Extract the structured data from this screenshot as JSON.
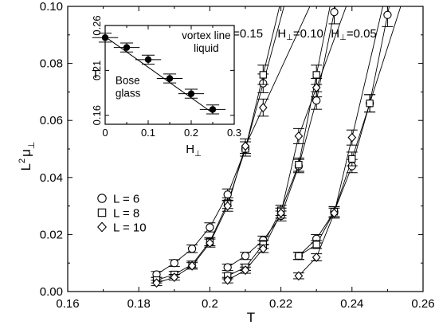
{
  "chart_data": [
    {
      "type": "scatter",
      "xlabel": "T",
      "ylabel_main": "L",
      "ylabel_sup": "2",
      "ylabel_tail": "μ",
      "ylabel_sub": "⊥",
      "xlim": [
        0.16,
        0.26
      ],
      "ylim": [
        0.0,
        0.1
      ],
      "xticks": [
        0.16,
        0.18,
        0.2,
        0.22,
        0.24,
        0.26
      ],
      "xtick_labels": [
        "0.16",
        "0.18",
        "0.2",
        "0.22",
        "0.24",
        "0.26"
      ],
      "yticks": [
        0.0,
        0.02,
        0.04,
        0.06,
        0.08,
        0.1
      ],
      "ytick_labels": [
        "0.00",
        "0.02",
        "0.04",
        "0.06",
        "0.08",
        "0.10"
      ],
      "annotations": [
        {
          "text": "H",
          "sub": "⊥",
          "tail": "=0.15",
          "x": 0.2085,
          "y": 0.0905
        },
        {
          "text": "H",
          "sub": "⊥",
          "tail": "=0.10",
          "x": 0.2255,
          "y": 0.0905
        },
        {
          "text": "H",
          "sub": "⊥",
          "tail": "=0.05",
          "x": 0.2405,
          "y": 0.0905
        }
      ],
      "legend": {
        "position": "left",
        "entries": [
          {
            "marker": "circle",
            "label": "L =  6"
          },
          {
            "marker": "square",
            "label": "L =  8"
          },
          {
            "marker": "diamond",
            "label": "L = 10"
          }
        ]
      },
      "series": [
        {
          "group": "0.15",
          "name": "L =  6",
          "marker": "circle",
          "points": [
            [
              0.185,
              0.006
            ],
            [
              0.19,
              0.01
            ],
            [
              0.195,
              0.015
            ],
            [
              0.2,
              0.0225
            ],
            [
              0.205,
              0.034
            ],
            [
              0.21,
              0.05
            ],
            [
              0.215,
              0.073
            ]
          ]
        },
        {
          "group": "0.15",
          "name": "L =  8",
          "marker": "square",
          "points": [
            [
              0.185,
              0.004
            ],
            [
              0.19,
              0.006
            ],
            [
              0.195,
              0.0095
            ],
            [
              0.2,
              0.0175
            ],
            [
              0.205,
              0.031
            ],
            [
              0.21,
              0.05
            ],
            [
              0.215,
              0.076
            ]
          ]
        },
        {
          "group": "0.15",
          "name": "L = 10",
          "marker": "diamond",
          "points": [
            [
              0.185,
              0.003
            ],
            [
              0.19,
              0.005
            ],
            [
              0.195,
              0.009
            ],
            [
              0.2,
              0.017
            ],
            [
              0.205,
              0.03
            ],
            [
              0.21,
              0.051
            ],
            [
              0.215,
              0.0645
            ]
          ]
        },
        {
          "group": "0.10",
          "name": "L =  6",
          "marker": "circle",
          "points": [
            [
              0.205,
              0.0085
            ],
            [
              0.21,
              0.0125
            ],
            [
              0.215,
              0.018
            ],
            [
              0.22,
              0.0265
            ],
            [
              0.225,
              0.044
            ],
            [
              0.23,
              0.067
            ],
            [
              0.235,
              0.098
            ]
          ]
        },
        {
          "group": "0.10",
          "name": "L =  8",
          "marker": "square",
          "points": [
            [
              0.205,
              0.0055
            ],
            [
              0.21,
              0.0085
            ],
            [
              0.215,
              0.0165
            ],
            [
              0.22,
              0.0285
            ],
            [
              0.225,
              0.0445
            ],
            [
              0.23,
              0.076
            ]
          ]
        },
        {
          "group": "0.10",
          "name": "L = 10",
          "marker": "diamond",
          "points": [
            [
              0.205,
              0.004
            ],
            [
              0.21,
              0.0075
            ],
            [
              0.215,
              0.015
            ],
            [
              0.22,
              0.0275
            ],
            [
              0.225,
              0.0545
            ],
            [
              0.23,
              0.0715
            ]
          ]
        },
        {
          "group": "0.05",
          "name": "L =  6",
          "marker": "circle",
          "points": [
            [
              0.225,
              0.0125
            ],
            [
              0.23,
              0.0185
            ],
            [
              0.235,
              0.028
            ],
            [
              0.24,
              0.044
            ],
            [
              0.245,
              0.066
            ],
            [
              0.25,
              0.097
            ]
          ]
        },
        {
          "group": "0.05",
          "name": "L =  8",
          "marker": "square",
          "points": [
            [
              0.225,
              0.0125
            ],
            [
              0.23,
              0.0165
            ],
            [
              0.235,
              0.028
            ],
            [
              0.24,
              0.0465
            ],
            [
              0.245,
              0.066
            ]
          ]
        },
        {
          "group": "0.05",
          "name": "L = 10",
          "marker": "diamond",
          "points": [
            [
              0.225,
              0.0055
            ],
            [
              0.23,
              0.012
            ],
            [
              0.235,
              0.0275
            ],
            [
              0.24,
              0.054
            ]
          ]
        }
      ]
    },
    {
      "type": "line",
      "inset": true,
      "xlabel": "H",
      "xlabel_sub": "⊥",
      "ylabel": "T",
      "xlim": [
        0.0,
        0.3
      ],
      "ylim": [
        0.15,
        0.26
      ],
      "xticks": [
        0.0,
        0.1,
        0.2,
        0.3
      ],
      "xtick_labels": [
        "0",
        "0.1",
        "0.2",
        "0.3"
      ],
      "yticks": [
        0.16,
        0.21,
        0.26
      ],
      "ytick_labels": [
        "0.16",
        "0.21",
        "0.26"
      ],
      "annotations": [
        {
          "lines": [
            "vortex line",
            "liquid"
          ],
          "x": 0.235,
          "y": 0.245
        },
        {
          "lines": [
            "Bose",
            "glass"
          ],
          "x": 0.035,
          "y": 0.195
        }
      ],
      "x": [
        0.0,
        0.05,
        0.1,
        0.15,
        0.2,
        0.25
      ],
      "y": [
        0.2465,
        0.2355,
        0.222,
        0.201,
        0.184,
        0.1665
      ],
      "errors": [
        0.005,
        0.005,
        0.005,
        0.005,
        0.005,
        0.005
      ],
      "fit": [
        [
          0.0,
          0.2475
        ],
        [
          0.25,
          0.1625
        ]
      ]
    }
  ]
}
